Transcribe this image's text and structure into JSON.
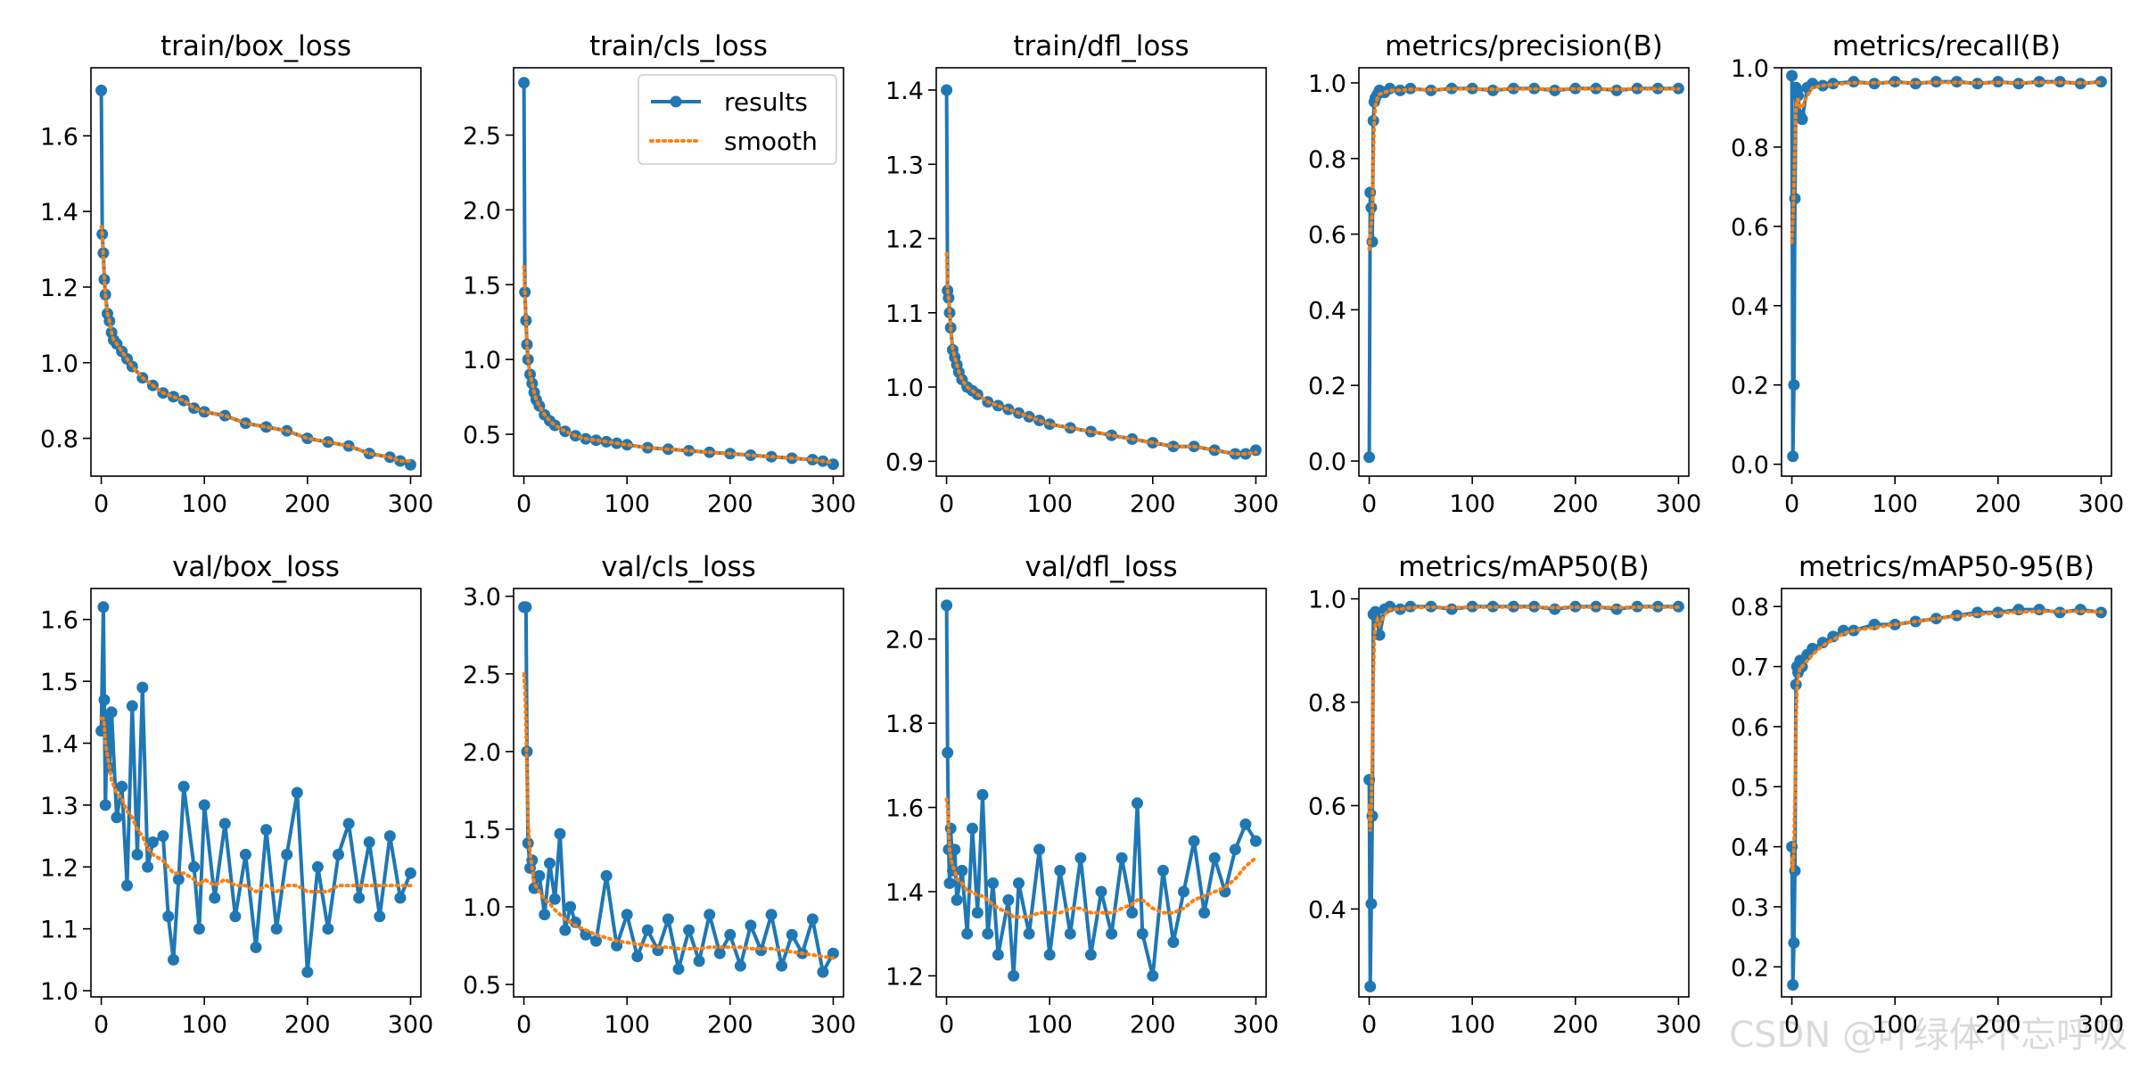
{
  "colors": {
    "results": "#1f77b4",
    "smooth": "#ff7f0e"
  },
  "legend": {
    "results": "results",
    "smooth": "smooth",
    "location": "upper-right",
    "panel": "train/cls_loss"
  },
  "watermark": "CSDN @叶绿体不忘呼吸",
  "chart_data": [
    {
      "type": "line",
      "title": "train/box_loss",
      "xlim": [
        -10,
        310
      ],
      "ylim": [
        0.7,
        1.78
      ],
      "xticks": [
        0,
        100,
        200,
        300
      ],
      "yticks": [
        0.8,
        1.0,
        1.2,
        1.4,
        1.6
      ],
      "decimals": 1,
      "x": [
        0,
        1,
        2,
        3,
        4,
        6,
        8,
        10,
        12,
        15,
        20,
        25,
        30,
        40,
        50,
        60,
        70,
        80,
        90,
        100,
        120,
        140,
        160,
        180,
        200,
        220,
        240,
        260,
        280,
        290,
        300
      ],
      "results": [
        1.72,
        1.34,
        1.29,
        1.22,
        1.18,
        1.13,
        1.11,
        1.08,
        1.06,
        1.05,
        1.03,
        1.01,
        0.99,
        0.96,
        0.94,
        0.92,
        0.91,
        0.9,
        0.88,
        0.87,
        0.86,
        0.84,
        0.83,
        0.82,
        0.8,
        0.79,
        0.78,
        0.76,
        0.75,
        0.74,
        0.73
      ],
      "smooth": [
        1.36,
        1.34,
        1.28,
        1.22,
        1.18,
        1.13,
        1.11,
        1.08,
        1.06,
        1.05,
        1.03,
        1.01,
        0.99,
        0.96,
        0.94,
        0.92,
        0.91,
        0.9,
        0.88,
        0.87,
        0.86,
        0.84,
        0.83,
        0.82,
        0.8,
        0.79,
        0.78,
        0.76,
        0.75,
        0.74,
        0.74
      ]
    },
    {
      "type": "line",
      "title": "train/cls_loss",
      "xlim": [
        -10,
        310
      ],
      "ylim": [
        0.22,
        2.95
      ],
      "xticks": [
        0,
        100,
        200,
        300
      ],
      "yticks": [
        0.5,
        1.0,
        1.5,
        2.0,
        2.5
      ],
      "decimals": 1,
      "x": [
        0,
        1,
        2,
        3,
        4,
        6,
        8,
        10,
        12,
        15,
        20,
        25,
        30,
        40,
        50,
        60,
        70,
        80,
        90,
        100,
        120,
        140,
        160,
        180,
        200,
        220,
        240,
        260,
        280,
        290,
        300
      ],
      "results": [
        2.85,
        1.45,
        1.26,
        1.1,
        1.0,
        0.9,
        0.84,
        0.78,
        0.73,
        0.69,
        0.63,
        0.59,
        0.56,
        0.52,
        0.49,
        0.47,
        0.46,
        0.45,
        0.44,
        0.43,
        0.41,
        0.4,
        0.39,
        0.38,
        0.37,
        0.36,
        0.35,
        0.34,
        0.33,
        0.32,
        0.3
      ],
      "smooth": [
        1.62,
        1.45,
        1.26,
        1.1,
        1.0,
        0.9,
        0.84,
        0.78,
        0.73,
        0.69,
        0.63,
        0.59,
        0.56,
        0.52,
        0.49,
        0.47,
        0.46,
        0.45,
        0.44,
        0.43,
        0.41,
        0.4,
        0.39,
        0.38,
        0.37,
        0.36,
        0.35,
        0.34,
        0.33,
        0.32,
        0.31
      ]
    },
    {
      "type": "line",
      "title": "train/dfl_loss",
      "xlim": [
        -10,
        310
      ],
      "ylim": [
        0.88,
        1.43
      ],
      "xticks": [
        0,
        100,
        200,
        300
      ],
      "yticks": [
        0.9,
        1.0,
        1.1,
        1.2,
        1.3,
        1.4
      ],
      "decimals": 1,
      "x": [
        0,
        1,
        2,
        3,
        4,
        6,
        8,
        10,
        12,
        15,
        20,
        25,
        30,
        40,
        50,
        60,
        70,
        80,
        90,
        100,
        120,
        140,
        160,
        180,
        200,
        220,
        240,
        260,
        280,
        290,
        300
      ],
      "results": [
        1.4,
        1.13,
        1.12,
        1.1,
        1.08,
        1.05,
        1.04,
        1.03,
        1.02,
        1.01,
        1.0,
        0.995,
        0.99,
        0.98,
        0.975,
        0.97,
        0.965,
        0.96,
        0.955,
        0.95,
        0.945,
        0.94,
        0.935,
        0.93,
        0.925,
        0.92,
        0.92,
        0.915,
        0.91,
        0.91,
        0.915
      ],
      "smooth": [
        1.18,
        1.13,
        1.12,
        1.1,
        1.08,
        1.05,
        1.04,
        1.03,
        1.02,
        1.01,
        1.0,
        0.995,
        0.99,
        0.98,
        0.975,
        0.97,
        0.965,
        0.96,
        0.955,
        0.95,
        0.945,
        0.94,
        0.935,
        0.93,
        0.925,
        0.92,
        0.92,
        0.915,
        0.91,
        0.91,
        0.912
      ]
    },
    {
      "type": "line",
      "title": "metrics/precision(B)",
      "xlim": [
        -10,
        310
      ],
      "ylim": [
        -0.04,
        1.04
      ],
      "xticks": [
        0,
        100,
        200,
        300
      ],
      "yticks": [
        0.0,
        0.2,
        0.4,
        0.6,
        0.8,
        1.0
      ],
      "decimals": 1,
      "x": [
        0,
        1,
        2,
        3,
        4,
        5,
        6,
        8,
        10,
        15,
        20,
        30,
        40,
        60,
        80,
        100,
        120,
        140,
        160,
        180,
        200,
        220,
        240,
        260,
        280,
        300
      ],
      "results": [
        0.01,
        0.71,
        0.67,
        0.58,
        0.9,
        0.95,
        0.96,
        0.97,
        0.98,
        0.975,
        0.985,
        0.98,
        0.985,
        0.98,
        0.985,
        0.985,
        0.98,
        0.985,
        0.985,
        0.98,
        0.985,
        0.985,
        0.98,
        0.985,
        0.985,
        0.985
      ],
      "smooth": [
        0.56,
        0.6,
        0.63,
        0.66,
        0.8,
        0.9,
        0.94,
        0.96,
        0.97,
        0.975,
        0.98,
        0.98,
        0.983,
        0.982,
        0.984,
        0.984,
        0.983,
        0.984,
        0.984,
        0.983,
        0.984,
        0.984,
        0.983,
        0.984,
        0.984,
        0.984
      ]
    },
    {
      "type": "line",
      "title": "metrics/recall(B)",
      "xlim": [
        -10,
        310
      ],
      "ylim": [
        -0.03,
        1.0
      ],
      "xticks": [
        0,
        100,
        200,
        300
      ],
      "yticks": [
        0.0,
        0.2,
        0.4,
        0.6,
        0.8,
        1.0
      ],
      "decimals": 1,
      "x": [
        0,
        1,
        2,
        3,
        4,
        5,
        6,
        8,
        10,
        15,
        20,
        30,
        40,
        60,
        80,
        100,
        120,
        140,
        160,
        180,
        200,
        220,
        240,
        260,
        280,
        300
      ],
      "results": [
        0.98,
        0.02,
        0.2,
        0.67,
        0.95,
        0.94,
        0.93,
        0.88,
        0.87,
        0.95,
        0.96,
        0.955,
        0.96,
        0.965,
        0.96,
        0.965,
        0.96,
        0.965,
        0.965,
        0.96,
        0.965,
        0.96,
        0.965,
        0.965,
        0.96,
        0.965
      ],
      "smooth": [
        0.56,
        0.62,
        0.7,
        0.8,
        0.9,
        0.92,
        0.92,
        0.9,
        0.9,
        0.93,
        0.95,
        0.955,
        0.958,
        0.962,
        0.962,
        0.963,
        0.962,
        0.963,
        0.963,
        0.962,
        0.963,
        0.962,
        0.963,
        0.963,
        0.962,
        0.963
      ]
    },
    {
      "type": "line",
      "title": "val/box_loss",
      "xlim": [
        -10,
        310
      ],
      "ylim": [
        0.99,
        1.65
      ],
      "xticks": [
        0,
        100,
        200,
        300
      ],
      "yticks": [
        1.0,
        1.1,
        1.2,
        1.3,
        1.4,
        1.5,
        1.6
      ],
      "decimals": 1,
      "x": [
        0,
        2,
        3,
        4,
        6,
        8,
        10,
        15,
        20,
        25,
        30,
        35,
        40,
        45,
        50,
        60,
        65,
        70,
        75,
        80,
        90,
        95,
        100,
        110,
        120,
        130,
        140,
        150,
        160,
        170,
        180,
        190,
        200,
        210,
        220,
        230,
        240,
        250,
        260,
        270,
        280,
        290,
        300
      ],
      "results": [
        1.42,
        1.62,
        1.47,
        1.3,
        1.44,
        1.36,
        1.45,
        1.28,
        1.33,
        1.17,
        1.46,
        1.22,
        1.49,
        1.2,
        1.24,
        1.25,
        1.12,
        1.05,
        1.18,
        1.33,
        1.2,
        1.1,
        1.3,
        1.15,
        1.27,
        1.12,
        1.22,
        1.07,
        1.26,
        1.1,
        1.22,
        1.32,
        1.03,
        1.2,
        1.1,
        1.22,
        1.27,
        1.15,
        1.24,
        1.12,
        1.25,
        1.15,
        1.19
      ],
      "smooth": [
        1.44,
        1.44,
        1.43,
        1.4,
        1.38,
        1.36,
        1.34,
        1.32,
        1.31,
        1.29,
        1.28,
        1.26,
        1.25,
        1.23,
        1.22,
        1.21,
        1.2,
        1.19,
        1.19,
        1.19,
        1.18,
        1.17,
        1.18,
        1.17,
        1.18,
        1.17,
        1.17,
        1.16,
        1.17,
        1.16,
        1.17,
        1.17,
        1.16,
        1.16,
        1.16,
        1.17,
        1.17,
        1.17,
        1.17,
        1.17,
        1.17,
        1.17,
        1.17
      ]
    },
    {
      "type": "line",
      "title": "val/cls_loss",
      "xlim": [
        -10,
        310
      ],
      "ylim": [
        0.42,
        3.05
      ],
      "xticks": [
        0,
        100,
        200,
        300
      ],
      "yticks": [
        0.5,
        1.0,
        1.5,
        2.0,
        2.5,
        3.0
      ],
      "decimals": 1,
      "x": [
        0,
        1,
        2,
        3,
        4,
        6,
        8,
        10,
        15,
        20,
        25,
        30,
        35,
        40,
        45,
        50,
        60,
        70,
        80,
        90,
        100,
        110,
        120,
        130,
        140,
        150,
        160,
        170,
        180,
        190,
        200,
        210,
        220,
        230,
        240,
        250,
        260,
        270,
        280,
        290,
        300
      ],
      "results": [
        2.93,
        2.93,
        2.93,
        2.0,
        1.41,
        1.25,
        1.3,
        1.12,
        1.2,
        0.95,
        1.28,
        1.05,
        1.47,
        0.85,
        1.0,
        0.9,
        0.82,
        0.78,
        1.2,
        0.75,
        0.95,
        0.68,
        0.85,
        0.72,
        0.92,
        0.6,
        0.85,
        0.65,
        0.95,
        0.7,
        0.82,
        0.62,
        0.88,
        0.72,
        0.95,
        0.62,
        0.82,
        0.7,
        0.92,
        0.58,
        0.7
      ],
      "smooth": [
        2.5,
        2.4,
        2.2,
        1.85,
        1.55,
        1.35,
        1.25,
        1.15,
        1.1,
        1.05,
        1.02,
        0.98,
        0.95,
        0.92,
        0.9,
        0.88,
        0.85,
        0.82,
        0.8,
        0.78,
        0.77,
        0.76,
        0.75,
        0.74,
        0.74,
        0.73,
        0.73,
        0.73,
        0.74,
        0.74,
        0.74,
        0.74,
        0.73,
        0.73,
        0.73,
        0.72,
        0.71,
        0.7,
        0.69,
        0.68,
        0.67
      ]
    },
    {
      "type": "line",
      "title": "val/dfl_loss",
      "xlim": [
        -10,
        310
      ],
      "ylim": [
        1.15,
        2.12
      ],
      "xticks": [
        0,
        100,
        200,
        300
      ],
      "yticks": [
        1.2,
        1.4,
        1.6,
        1.8,
        2.0
      ],
      "decimals": 1,
      "x": [
        0,
        1,
        2,
        3,
        4,
        6,
        8,
        10,
        15,
        20,
        25,
        30,
        35,
        40,
        45,
        50,
        60,
        65,
        70,
        80,
        90,
        100,
        110,
        120,
        130,
        140,
        150,
        160,
        170,
        180,
        185,
        190,
        200,
        210,
        220,
        230,
        240,
        250,
        260,
        270,
        280,
        290,
        300
      ],
      "results": [
        2.08,
        1.73,
        1.5,
        1.42,
        1.55,
        1.45,
        1.5,
        1.38,
        1.45,
        1.3,
        1.55,
        1.35,
        1.63,
        1.3,
        1.42,
        1.25,
        1.38,
        1.2,
        1.42,
        1.3,
        1.5,
        1.25,
        1.45,
        1.3,
        1.48,
        1.25,
        1.4,
        1.3,
        1.48,
        1.35,
        1.61,
        1.3,
        1.2,
        1.45,
        1.28,
        1.4,
        1.52,
        1.35,
        1.48,
        1.4,
        1.5,
        1.56,
        1.52
      ],
      "smooth": [
        1.62,
        1.6,
        1.55,
        1.5,
        1.48,
        1.46,
        1.45,
        1.43,
        1.42,
        1.4,
        1.4,
        1.39,
        1.39,
        1.38,
        1.37,
        1.36,
        1.35,
        1.34,
        1.34,
        1.34,
        1.35,
        1.35,
        1.35,
        1.36,
        1.36,
        1.35,
        1.35,
        1.35,
        1.36,
        1.37,
        1.38,
        1.38,
        1.36,
        1.35,
        1.35,
        1.36,
        1.38,
        1.39,
        1.4,
        1.41,
        1.43,
        1.46,
        1.48
      ]
    },
    {
      "type": "line",
      "title": "metrics/mAP50(B)",
      "xlim": [
        -10,
        310
      ],
      "ylim": [
        0.23,
        1.02
      ],
      "xticks": [
        0,
        100,
        200,
        300
      ],
      "yticks": [
        0.4,
        0.6,
        0.8,
        1.0
      ],
      "decimals": 1,
      "x": [
        0,
        1,
        2,
        3,
        4,
        5,
        6,
        8,
        10,
        15,
        20,
        30,
        40,
        60,
        80,
        100,
        120,
        140,
        160,
        180,
        200,
        220,
        240,
        260,
        280,
        300
      ],
      "results": [
        0.65,
        0.25,
        0.41,
        0.58,
        0.97,
        0.97,
        0.975,
        0.96,
        0.93,
        0.98,
        0.985,
        0.98,
        0.985,
        0.985,
        0.98,
        0.985,
        0.985,
        0.985,
        0.985,
        0.98,
        0.985,
        0.985,
        0.98,
        0.985,
        0.985,
        0.985
      ],
      "smooth": [
        0.6,
        0.55,
        0.6,
        0.7,
        0.85,
        0.92,
        0.95,
        0.96,
        0.95,
        0.97,
        0.98,
        0.98,
        0.983,
        0.984,
        0.983,
        0.984,
        0.984,
        0.984,
        0.984,
        0.983,
        0.984,
        0.984,
        0.983,
        0.984,
        0.984,
        0.984
      ]
    },
    {
      "type": "line",
      "title": "metrics/mAP50-95(B)",
      "xlim": [
        -10,
        310
      ],
      "ylim": [
        0.15,
        0.83
      ],
      "xticks": [
        0,
        100,
        200,
        300
      ],
      "yticks": [
        0.2,
        0.3,
        0.4,
        0.5,
        0.6,
        0.7,
        0.8
      ],
      "decimals": 1,
      "x": [
        0,
        1,
        2,
        3,
        4,
        5,
        6,
        8,
        10,
        15,
        20,
        30,
        40,
        50,
        60,
        80,
        100,
        120,
        140,
        160,
        180,
        200,
        220,
        240,
        260,
        280,
        300
      ],
      "results": [
        0.4,
        0.17,
        0.24,
        0.36,
        0.67,
        0.7,
        0.69,
        0.71,
        0.7,
        0.72,
        0.73,
        0.74,
        0.75,
        0.76,
        0.76,
        0.77,
        0.77,
        0.775,
        0.78,
        0.785,
        0.79,
        0.79,
        0.795,
        0.795,
        0.79,
        0.795,
        0.79
      ],
      "smooth": [
        0.38,
        0.36,
        0.4,
        0.48,
        0.6,
        0.66,
        0.68,
        0.7,
        0.7,
        0.71,
        0.72,
        0.735,
        0.745,
        0.755,
        0.76,
        0.765,
        0.77,
        0.775,
        0.78,
        0.784,
        0.787,
        0.789,
        0.791,
        0.792,
        0.792,
        0.792,
        0.791
      ]
    }
  ]
}
